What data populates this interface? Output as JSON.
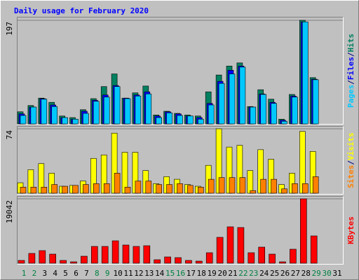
{
  "chart_data": [
    {
      "type": "bar",
      "title": "Daily usage for February 2020",
      "categories": [
        "1",
        "2",
        "3",
        "4",
        "5",
        "6",
        "7",
        "8",
        "9",
        "10",
        "11",
        "12",
        "13",
        "14",
        "15",
        "16",
        "17",
        "18",
        "19",
        "20",
        "21",
        "22",
        "23",
        "24",
        "25",
        "26",
        "27",
        "28",
        "29",
        "30",
        "31"
      ],
      "category_colors": [
        "#008040",
        "#008040",
        "#000000",
        "#000000",
        "#000000",
        "#000000",
        "#000000",
        "#008040",
        "#008040",
        "#000000",
        "#000000",
        "#000000",
        "#000000",
        "#000000",
        "#008040",
        "#008040",
        "#000000",
        "#000000",
        "#000000",
        "#000000",
        "#000000",
        "#008040",
        "#008040",
        "#000000",
        "#000000",
        "#000000",
        "#000000",
        "#000000",
        "#008040",
        "#008040",
        "#000000"
      ],
      "ylim": [
        0,
        197
      ],
      "yticks": [
        197
      ],
      "legend_separator": "/",
      "series": [
        {
          "name": "Pages",
          "color": "#00c8ff",
          "values": [
            16,
            32,
            47,
            33,
            12,
            9,
            20,
            43,
            51,
            71,
            48,
            53,
            57,
            12,
            21,
            16,
            15,
            9,
            36,
            77,
            95,
            108,
            32,
            56,
            39,
            5,
            51,
            194,
            84,
            0,
            0
          ]
        },
        {
          "name": "Files",
          "color": "#0000ff",
          "values": [
            19,
            32,
            48,
            36,
            12,
            9,
            24,
            45,
            55,
            73,
            49,
            55,
            61,
            15,
            23,
            19,
            15,
            12,
            39,
            81,
            102,
            110,
            32,
            57,
            41,
            7,
            53,
            194,
            85,
            0,
            0
          ]
        },
        {
          "name": "Hits",
          "color": "#008060",
          "values": [
            23,
            35,
            49,
            41,
            15,
            12,
            27,
            48,
            71,
            95,
            49,
            59,
            72,
            17,
            24,
            20,
            17,
            15,
            61,
            93,
            110,
            116,
            33,
            65,
            47,
            9,
            56,
            197,
            88,
            0,
            0
          ]
        }
      ]
    },
    {
      "type": "bar",
      "ylim": [
        0,
        74
      ],
      "yticks": [
        74
      ],
      "legend_separator": "/",
      "series": [
        {
          "name": "Sites",
          "color": "#ff8000",
          "values": [
            7,
            7,
            7,
            10,
            8,
            9,
            10,
            11,
            11,
            23,
            7,
            14,
            14,
            10,
            10,
            11,
            9,
            7,
            16,
            18,
            18,
            18,
            3,
            16,
            16,
            5,
            11,
            11,
            19,
            0,
            0
          ]
        },
        {
          "name": "Visits",
          "color": "#ffff00",
          "values": [
            12,
            27,
            34,
            23,
            8,
            9,
            14,
            40,
            44,
            69,
            47,
            47,
            26,
            11,
            19,
            16,
            10,
            8,
            32,
            74,
            53,
            55,
            26,
            50,
            39,
            10,
            23,
            71,
            48,
            0,
            0
          ]
        }
      ]
    },
    {
      "type": "bar",
      "ylim": [
        0,
        19042
      ],
      "yticks": [
        19042
      ],
      "series": [
        {
          "name": "KBytes",
          "color": "#ff0000",
          "values": [
            828,
            2898,
            3726,
            2691,
            828,
            414,
            2070,
            4968,
            4968,
            6624,
            5382,
            4968,
            5175,
            1035,
            1863,
            1656,
            828,
            621,
            3105,
            7659,
            10764,
            10557,
            3105,
            4761,
            2691,
            414,
            4140,
            19042,
            8073,
            0,
            0
          ]
        }
      ]
    }
  ]
}
